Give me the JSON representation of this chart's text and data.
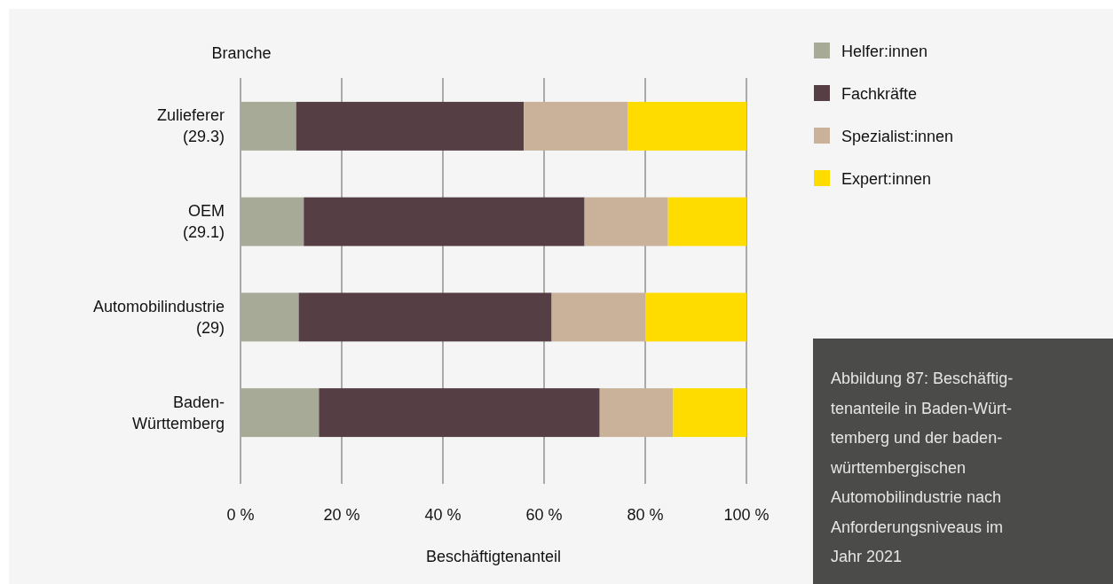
{
  "chart_data": {
    "type": "bar",
    "orientation": "horizontal",
    "stacked": true,
    "categories": [
      "Zulieferer\n(29.3)",
      "OEM\n(29.1)",
      "Automobilindustrie\n(29)",
      "Baden-\nWürttemberg"
    ],
    "series": [
      {
        "name": "Helfer:innen",
        "color": "#a8aa98",
        "values": [
          11,
          12.5,
          11.5,
          15.5
        ]
      },
      {
        "name": "Fachkräfte",
        "color": "#553f45",
        "values": [
          45,
          55.5,
          50,
          55.5
        ]
      },
      {
        "name": "Spezialist:innen",
        "color": "#cab29a",
        "values": [
          20.5,
          16.5,
          18.5,
          14.5
        ]
      },
      {
        "name": "Expert:innen",
        "color": "#ffdc00",
        "values": [
          23.5,
          15.5,
          20,
          14.5
        ]
      }
    ],
    "xlim": [
      0,
      100
    ],
    "xticks": [
      {
        "value": 0,
        "label": "0 %"
      },
      {
        "value": 20,
        "label": "20 %"
      },
      {
        "value": 40,
        "label": "40 %"
      },
      {
        "value": 60,
        "label": "60 %"
      },
      {
        "value": 80,
        "label": "80 %"
      },
      {
        "value": 100,
        "label": "100 %"
      }
    ],
    "xlabel": "Beschäftigtenanteil",
    "ylabel": "Branche",
    "grid": "x",
    "legend": "top right",
    "annotations": [
      "Abbildung 87: Beschäftig-\ntenanteile in Baden-Würt-\ntemberg und der baden-\nwürttembergischen\nAutomobilindustrie nach\nAnforderungsniveaus im\nJahr 2021"
    ]
  }
}
